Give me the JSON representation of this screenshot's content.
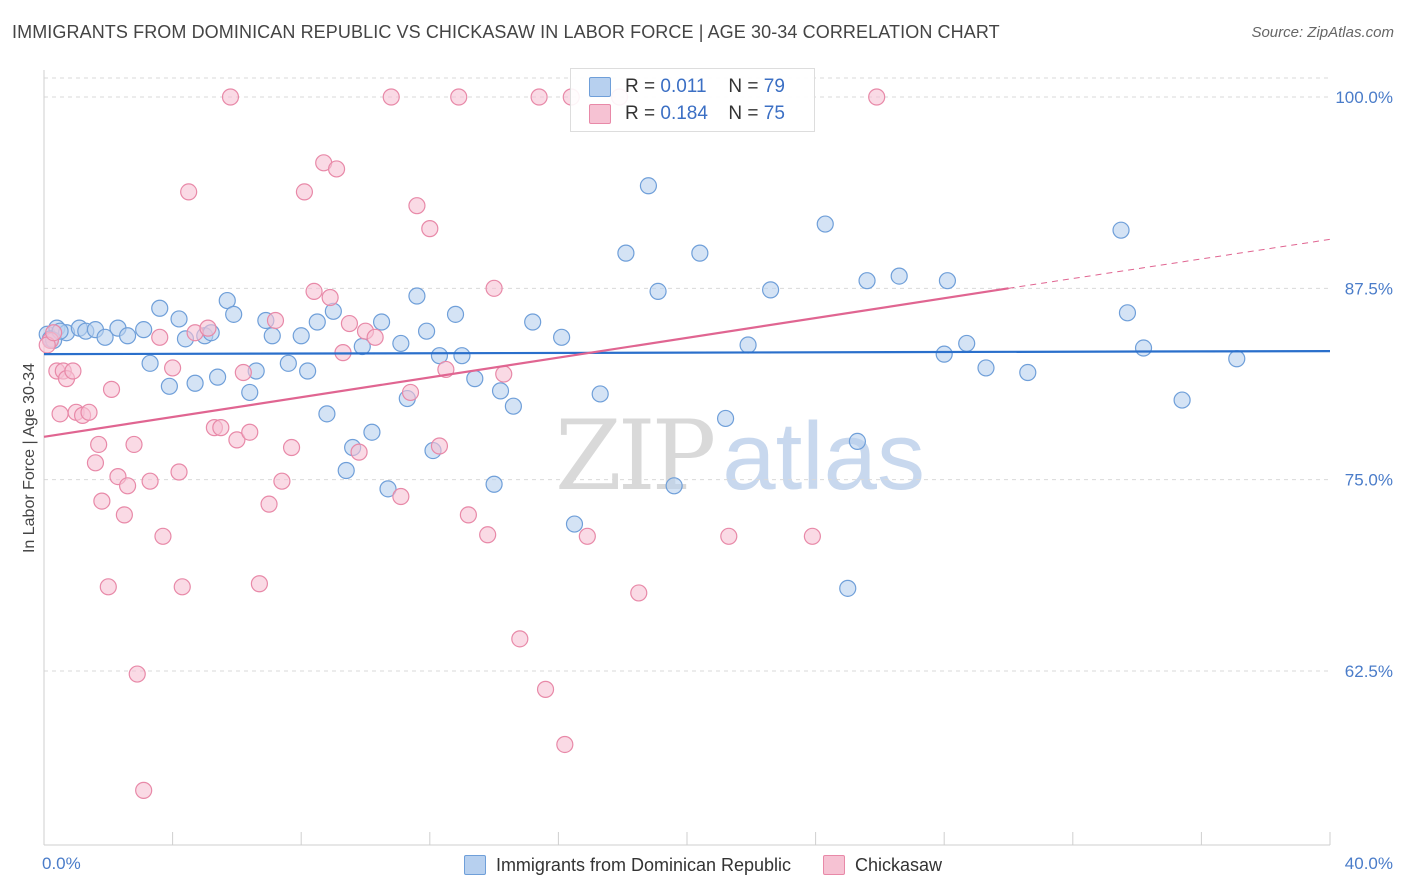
{
  "title": "IMMIGRANTS FROM DOMINICAN REPUBLIC VS CHICKASAW IN LABOR FORCE | AGE 30-34 CORRELATION CHART",
  "source": "Source: ZipAtlas.com",
  "watermark": {
    "zip": "ZIP",
    "atlas": "atlas"
  },
  "legend_top": {
    "rows": [
      {
        "r_label": "R =",
        "r_value": "0.011",
        "n_label": "N =",
        "n_value": "79"
      },
      {
        "r_label": "R =",
        "r_value": "0.184",
        "n_label": "N =",
        "n_value": "75"
      }
    ]
  },
  "colors": {
    "blue_fill": "#b7d0ef",
    "blue_stroke": "#6f9fd9",
    "blue_line": "#2a6fcb",
    "pink_fill": "#f6c2d3",
    "pink_stroke": "#e889a8",
    "pink_line": "#e06591",
    "grid": "#d9d9d9",
    "tick_label": "#4a7cc9"
  },
  "chart_data": {
    "type": "scatter",
    "xlabel": "",
    "ylabel": "In Labor Force | Age 30-34",
    "xlim": [
      0,
      40
    ],
    "ylim": [
      50.5,
      101.5
    ],
    "x_tick_labels": [
      {
        "value": 0,
        "label": "0.0%"
      },
      {
        "value": 40,
        "label": "40.0%"
      }
    ],
    "y_tick_labels": [
      {
        "value": 62.5,
        "label": "62.5%"
      },
      {
        "value": 75.0,
        "label": "75.0%"
      },
      {
        "value": 87.5,
        "label": "87.5%"
      },
      {
        "value": 100.0,
        "label": "100.0%"
      }
    ],
    "grid": true,
    "legend_position": "bottom",
    "series": [
      {
        "name": "Immigrants from Dominican Republic",
        "color": "#6f9fd9",
        "R": 0.011,
        "N": 79,
        "trend": {
          "x": [
            0,
            40
          ],
          "y": [
            83.2,
            83.4
          ]
        },
        "points": [
          [
            0.1,
            84.5
          ],
          [
            0.4,
            84.9
          ],
          [
            0.7,
            84.6
          ],
          [
            1.1,
            84.9
          ],
          [
            1.3,
            84.7
          ],
          [
            1.6,
            84.8
          ],
          [
            1.9,
            84.3
          ],
          [
            2.3,
            84.9
          ],
          [
            2.6,
            84.4
          ],
          [
            3.1,
            84.8
          ],
          [
            3.3,
            82.6
          ],
          [
            3.6,
            86.2
          ],
          [
            3.9,
            81.1
          ],
          [
            4.2,
            85.5
          ],
          [
            4.4,
            84.2
          ],
          [
            4.7,
            81.3
          ],
          [
            5.0,
            84.4
          ],
          [
            5.2,
            84.6
          ],
          [
            5.4,
            81.7
          ],
          [
            5.7,
            86.7
          ],
          [
            5.9,
            85.8
          ],
          [
            6.4,
            80.7
          ],
          [
            6.6,
            82.1
          ],
          [
            6.9,
            85.4
          ],
          [
            7.1,
            84.4
          ],
          [
            7.6,
            82.6
          ],
          [
            8.0,
            84.4
          ],
          [
            8.2,
            82.1
          ],
          [
            8.5,
            85.3
          ],
          [
            8.8,
            79.3
          ],
          [
            9.0,
            86.0
          ],
          [
            9.4,
            75.6
          ],
          [
            9.6,
            77.1
          ],
          [
            9.9,
            83.7
          ],
          [
            10.2,
            78.1
          ],
          [
            10.5,
            85.3
          ],
          [
            10.7,
            74.4
          ],
          [
            11.1,
            83.9
          ],
          [
            11.3,
            80.3
          ],
          [
            11.6,
            87.0
          ],
          [
            11.9,
            84.7
          ],
          [
            12.1,
            76.9
          ],
          [
            12.3,
            83.1
          ],
          [
            12.8,
            85.8
          ],
          [
            13.0,
            83.1
          ],
          [
            13.4,
            81.6
          ],
          [
            14.0,
            74.7
          ],
          [
            14.2,
            80.8
          ],
          [
            14.6,
            79.8
          ],
          [
            15.2,
            85.3
          ],
          [
            16.1,
            84.3
          ],
          [
            16.5,
            72.1
          ],
          [
            17.3,
            80.6
          ],
          [
            18.1,
            89.8
          ],
          [
            18.8,
            94.2
          ],
          [
            19.1,
            87.3
          ],
          [
            19.6,
            74.6
          ],
          [
            20.4,
            89.8
          ],
          [
            21.2,
            79.0
          ],
          [
            21.9,
            83.8
          ],
          [
            22.6,
            87.4
          ],
          [
            24.3,
            91.7
          ],
          [
            25.0,
            67.9
          ],
          [
            25.3,
            77.5
          ],
          [
            25.6,
            88.0
          ],
          [
            26.6,
            88.3
          ],
          [
            28.0,
            83.2
          ],
          [
            28.1,
            88.0
          ],
          [
            28.7,
            83.9
          ],
          [
            29.3,
            82.3
          ],
          [
            30.6,
            82.0
          ],
          [
            33.5,
            91.3
          ],
          [
            33.7,
            85.9
          ],
          [
            34.2,
            83.6
          ],
          [
            35.4,
            80.2
          ],
          [
            37.1,
            82.9
          ],
          [
            0.2,
            84.2
          ],
          [
            0.3,
            84.1
          ],
          [
            0.5,
            84.7
          ]
        ]
      },
      {
        "name": "Chickasaw",
        "color": "#e889a8",
        "R": 0.184,
        "N": 75,
        "trend": {
          "x": [
            0,
            30
          ],
          "y": [
            77.8,
            87.5
          ]
        },
        "trend_dashed": {
          "x": [
            30,
            40
          ],
          "y": [
            87.5,
            90.7
          ]
        },
        "points": [
          [
            0.2,
            84.1
          ],
          [
            0.4,
            82.1
          ],
          [
            0.6,
            82.1
          ],
          [
            0.7,
            81.6
          ],
          [
            0.9,
            82.1
          ],
          [
            1.0,
            79.4
          ],
          [
            1.2,
            79.2
          ],
          [
            1.4,
            79.4
          ],
          [
            1.6,
            76.1
          ],
          [
            1.7,
            77.3
          ],
          [
            1.8,
            73.6
          ],
          [
            2.0,
            68.0
          ],
          [
            2.1,
            80.9
          ],
          [
            2.3,
            75.2
          ],
          [
            2.5,
            72.7
          ],
          [
            2.6,
            74.6
          ],
          [
            2.8,
            77.3
          ],
          [
            2.9,
            62.3
          ],
          [
            3.1,
            54.7
          ],
          [
            3.3,
            74.9
          ],
          [
            3.6,
            84.3
          ],
          [
            3.7,
            71.3
          ],
          [
            4.0,
            82.3
          ],
          [
            4.2,
            75.5
          ],
          [
            4.3,
            68.0
          ],
          [
            4.5,
            93.8
          ],
          [
            4.7,
            84.6
          ],
          [
            5.1,
            84.9
          ],
          [
            5.3,
            78.4
          ],
          [
            5.5,
            78.4
          ],
          [
            5.8,
            100.0
          ],
          [
            6.0,
            77.6
          ],
          [
            6.2,
            82.0
          ],
          [
            6.4,
            78.1
          ],
          [
            6.7,
            68.2
          ],
          [
            7.0,
            73.4
          ],
          [
            7.2,
            85.4
          ],
          [
            7.4,
            74.9
          ],
          [
            7.7,
            77.1
          ],
          [
            8.1,
            93.8
          ],
          [
            8.4,
            87.3
          ],
          [
            8.7,
            95.7
          ],
          [
            8.9,
            86.9
          ],
          [
            9.1,
            95.3
          ],
          [
            9.3,
            83.3
          ],
          [
            9.5,
            85.2
          ],
          [
            9.8,
            76.8
          ],
          [
            10.0,
            84.7
          ],
          [
            10.3,
            84.3
          ],
          [
            10.8,
            100.0
          ],
          [
            11.1,
            73.9
          ],
          [
            11.4,
            80.7
          ],
          [
            11.6,
            92.9
          ],
          [
            12.0,
            91.4
          ],
          [
            12.3,
            77.2
          ],
          [
            12.5,
            82.2
          ],
          [
            12.9,
            100.0
          ],
          [
            13.2,
            72.7
          ],
          [
            13.8,
            71.4
          ],
          [
            14.0,
            87.5
          ],
          [
            14.3,
            81.9
          ],
          [
            14.8,
            64.6
          ],
          [
            15.4,
            100.0
          ],
          [
            15.6,
            61.3
          ],
          [
            16.2,
            57.7
          ],
          [
            16.4,
            100.0
          ],
          [
            16.9,
            71.3
          ],
          [
            17.9,
            100.0
          ],
          [
            18.5,
            67.6
          ],
          [
            21.3,
            71.3
          ],
          [
            23.9,
            71.3
          ],
          [
            25.9,
            100.0
          ],
          [
            0.1,
            83.8
          ],
          [
            0.3,
            84.6
          ],
          [
            0.5,
            79.3
          ]
        ]
      }
    ]
  }
}
